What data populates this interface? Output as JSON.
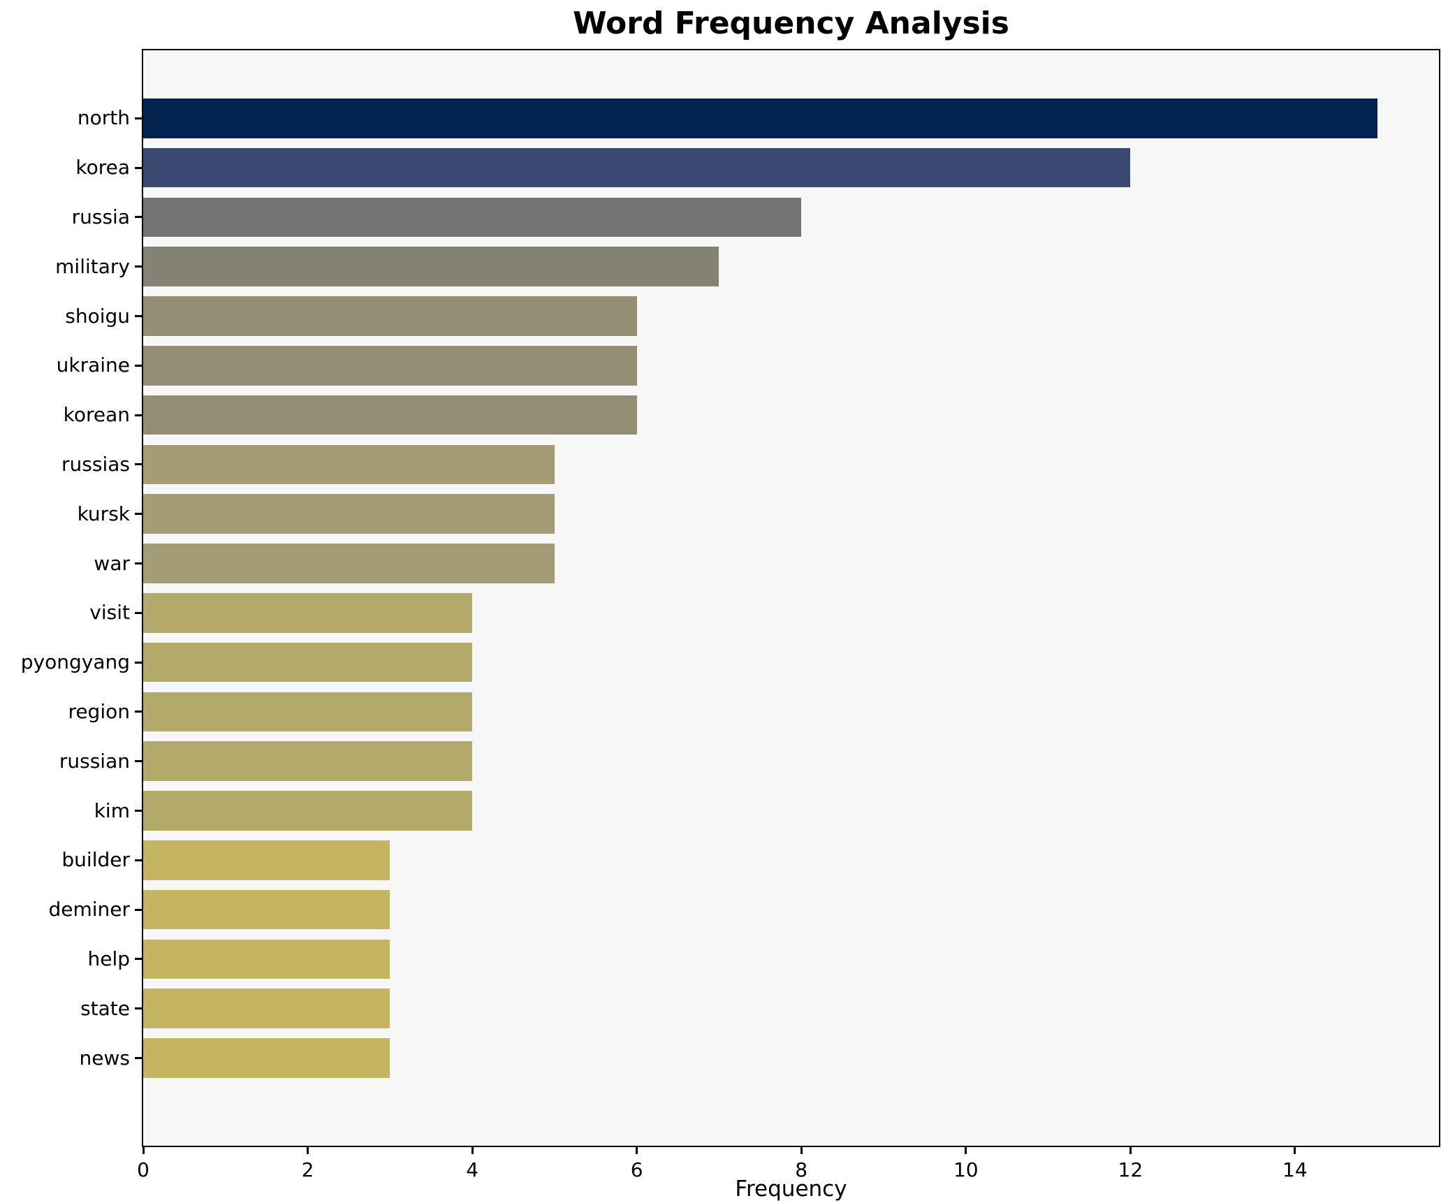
{
  "chart_data": {
    "type": "bar",
    "orientation": "horizontal",
    "title": "Word Frequency Analysis",
    "xlabel": "Frequency",
    "ylabel": "",
    "categories": [
      "north",
      "korea",
      "russia",
      "military",
      "shoigu",
      "ukraine",
      "korean",
      "russias",
      "kursk",
      "war",
      "visit",
      "pyongyang",
      "region",
      "russian",
      "kim",
      "builder",
      "deminer",
      "help",
      "state",
      "news"
    ],
    "values": [
      15,
      12,
      8,
      7,
      6,
      6,
      6,
      5,
      5,
      5,
      4,
      4,
      4,
      4,
      4,
      3,
      3,
      3,
      3,
      3
    ],
    "bar_colors": [
      "#022350",
      "#3a4971",
      "#747474",
      "#848274",
      "#948f74",
      "#948f74",
      "#948f74",
      "#a49c74",
      "#a49c74",
      "#a49c74",
      "#b3a96b",
      "#b3a96b",
      "#b3a96b",
      "#b3a96b",
      "#b3a96b",
      "#c5b562",
      "#c5b562",
      "#c5b562",
      "#c5b562",
      "#c5b562"
    ],
    "xticks": [
      0,
      2,
      4,
      6,
      8,
      10,
      12,
      14
    ],
    "xlim": [
      0,
      15.75
    ],
    "grid": false,
    "legend": false,
    "plot_background": "#f7f7f7",
    "spine_color": "#000000",
    "colormap": "cividis"
  }
}
